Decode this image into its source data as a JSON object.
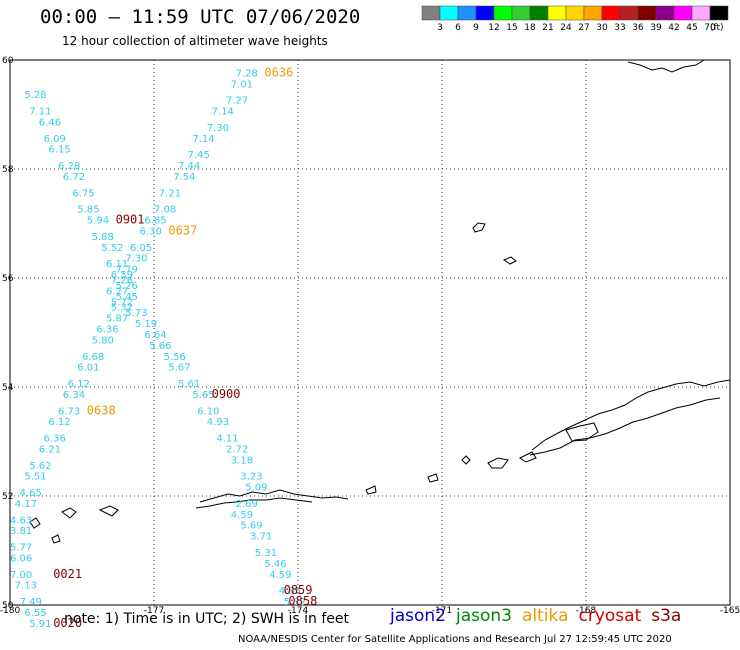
{
  "header": {
    "title": "00:00 – 11:59 UTC 07/06/2020",
    "subtitle": "12 hour collection of altimeter wave heights"
  },
  "legend": {
    "unit": "(ft)",
    "bins": [
      {
        "label": "3",
        "color": "#808080"
      },
      {
        "label": "6",
        "color": "#00ffff"
      },
      {
        "label": "9",
        "color": "#1e90ff"
      },
      {
        "label": "12",
        "color": "#0000ff"
      },
      {
        "label": "15",
        "color": "#00ff00"
      },
      {
        "label": "18",
        "color": "#32cd32"
      },
      {
        "label": "21",
        "color": "#008000"
      },
      {
        "label": "24",
        "color": "#ffff00"
      },
      {
        "label": "27",
        "color": "#ffd700"
      },
      {
        "label": "30",
        "color": "#ffa500"
      },
      {
        "label": "33",
        "color": "#ff0000"
      },
      {
        "label": "36",
        "color": "#b22222"
      },
      {
        "label": "39",
        "color": "#800000"
      },
      {
        "label": "42",
        "color": "#8b008b"
      },
      {
        "label": "45",
        "color": "#ff00ff"
      },
      {
        "label": "70",
        "color": "#ffaaff"
      },
      {
        "label": "",
        "color": "#000000"
      }
    ]
  },
  "axes": {
    "lat_labels": [
      "60",
      "58",
      "56",
      "54",
      "52",
      "50"
    ],
    "lon_labels": [
      "-180",
      "-177",
      "-174",
      "-171",
      "-168",
      "-165"
    ],
    "lat_range": [
      50,
      60
    ],
    "lon_range": [
      -180,
      -165
    ]
  },
  "colors": {
    "swh_text": "#33ccee",
    "time_altika": "#ee9900",
    "time_cryosat": "#880000",
    "coast": "#000000",
    "grid": "#000000"
  },
  "tracks": {
    "track_a": {
      "points": [
        {
          "lon": -175.3,
          "lat": 59.7,
          "v": "7.28"
        },
        {
          "lon": -175.4,
          "lat": 59.5,
          "v": "7.01"
        },
        {
          "lon": -175.5,
          "lat": 59.2,
          "v": "7.27"
        },
        {
          "lon": -175.8,
          "lat": 59.0,
          "v": "7.14"
        },
        {
          "lon": -175.9,
          "lat": 58.7,
          "v": "7.30"
        },
        {
          "lon": -176.2,
          "lat": 58.5,
          "v": "7.14"
        },
        {
          "lon": -176.3,
          "lat": 58.2,
          "v": "7.45"
        },
        {
          "lon": -176.5,
          "lat": 58.0,
          "v": "7.44"
        },
        {
          "lon": -176.6,
          "lat": 57.8,
          "v": "7.54"
        },
        {
          "lon": -176.9,
          "lat": 57.5,
          "v": "7.21"
        },
        {
          "lon": -177.0,
          "lat": 57.2,
          "v": "7.08"
        },
        {
          "lon": -177.2,
          "lat": 57.0,
          "v": "6.85"
        },
        {
          "lon": -177.3,
          "lat": 56.8,
          "v": "6.30"
        },
        {
          "lon": -177.5,
          "lat": 56.5,
          "v": "6.05"
        },
        {
          "lon": -177.6,
          "lat": 56.3,
          "v": "7.30"
        },
        {
          "lon": -177.8,
          "lat": 56.1,
          "v": "7.79"
        },
        {
          "lon": -177.9,
          "lat": 55.9,
          "v": "7.26"
        },
        {
          "lon": -178.0,
          "lat": 55.7,
          "v": "6.27"
        },
        {
          "lon": -177.9,
          "lat": 55.5,
          "v": "5.72"
        },
        {
          "lon": -177.6,
          "lat": 55.3,
          "v": "5.73"
        },
        {
          "lon": -177.4,
          "lat": 55.1,
          "v": "5.19"
        },
        {
          "lon": -177.2,
          "lat": 54.9,
          "v": "6.64"
        },
        {
          "lon": -177.1,
          "lat": 54.7,
          "v": "5.66"
        },
        {
          "lon": -176.8,
          "lat": 54.5,
          "v": "5.56"
        },
        {
          "lon": -176.7,
          "lat": 54.3,
          "v": "5.67"
        },
        {
          "lon": -176.5,
          "lat": 54.0,
          "v": "5.61"
        },
        {
          "lon": -176.2,
          "lat": 53.8,
          "v": "5.65"
        },
        {
          "lon": -176.1,
          "lat": 53.5,
          "v": "6.10"
        },
        {
          "lon": -175.9,
          "lat": 53.3,
          "v": "4.93"
        },
        {
          "lon": -175.7,
          "lat": 53.0,
          "v": "4.11"
        },
        {
          "lon": -175.5,
          "lat": 52.8,
          "v": "2.72"
        },
        {
          "lon": -175.4,
          "lat": 52.6,
          "v": "3.18"
        },
        {
          "lon": -175.2,
          "lat": 52.3,
          "v": "3.23"
        },
        {
          "lon": -175.1,
          "lat": 52.1,
          "v": "5.09"
        },
        {
          "lon": -175.3,
          "lat": 51.8,
          "v": "2.69"
        },
        {
          "lon": -175.4,
          "lat": 51.6,
          "v": "4.59"
        },
        {
          "lon": -175.2,
          "lat": 51.4,
          "v": "5.69"
        },
        {
          "lon": -175.0,
          "lat": 51.2,
          "v": "3.71"
        },
        {
          "lon": -174.9,
          "lat": 50.9,
          "v": "5.31"
        },
        {
          "lon": -174.7,
          "lat": 50.7,
          "v": "5.46"
        },
        {
          "lon": -174.6,
          "lat": 50.5,
          "v": "4.59"
        },
        {
          "lon": -174.4,
          "lat": 50.2,
          "v": "4.85"
        },
        {
          "lon": -174.3,
          "lat": 50.0,
          "v": "5.32"
        }
      ]
    },
    "track_b": {
      "points": [
        {
          "lon": -179.7,
          "lat": 59.3,
          "v": "5.28"
        },
        {
          "lon": -179.6,
          "lat": 59.0,
          "v": "7.11"
        },
        {
          "lon": -179.4,
          "lat": 58.8,
          "v": "6.46"
        },
        {
          "lon": -179.3,
          "lat": 58.5,
          "v": "6.09"
        },
        {
          "lon": -179.2,
          "lat": 58.3,
          "v": "6.15"
        },
        {
          "lon": -179.0,
          "lat": 58.0,
          "v": "6.28"
        },
        {
          "lon": -178.9,
          "lat": 57.8,
          "v": "6.72"
        },
        {
          "lon": -178.7,
          "lat": 57.5,
          "v": "6.75"
        },
        {
          "lon": -178.6,
          "lat": 57.2,
          "v": "5.85"
        },
        {
          "lon": -178.4,
          "lat": 57.0,
          "v": "5.94"
        },
        {
          "lon": -178.3,
          "lat": 56.7,
          "v": "5.88"
        },
        {
          "lon": -178.1,
          "lat": 56.5,
          "v": "5.52"
        },
        {
          "lon": -178.0,
          "lat": 56.2,
          "v": "6.11"
        },
        {
          "lon": -177.9,
          "lat": 56.0,
          "v": "6.59"
        },
        {
          "lon": -177.8,
          "lat": 55.8,
          "v": "5.26"
        },
        {
          "lon": -177.8,
          "lat": 55.6,
          "v": "5.45"
        },
        {
          "lon": -177.9,
          "lat": 55.4,
          "v": "5.32"
        },
        {
          "lon": -178.0,
          "lat": 55.2,
          "v": "5.87"
        },
        {
          "lon": -178.2,
          "lat": 55.0,
          "v": "6.36"
        },
        {
          "lon": -178.3,
          "lat": 54.8,
          "v": "5.80"
        },
        {
          "lon": -178.5,
          "lat": 54.5,
          "v": "6.68"
        },
        {
          "lon": -178.6,
          "lat": 54.3,
          "v": "6.01"
        },
        {
          "lon": -178.8,
          "lat": 54.0,
          "v": "6.12"
        },
        {
          "lon": -178.9,
          "lat": 53.8,
          "v": "6.34"
        },
        {
          "lon": -179.0,
          "lat": 53.5,
          "v": "6.73"
        },
        {
          "lon": -179.2,
          "lat": 53.3,
          "v": "6.12"
        },
        {
          "lon": -179.3,
          "lat": 53.0,
          "v": "6.36"
        },
        {
          "lon": -179.4,
          "lat": 52.8,
          "v": "6.21"
        },
        {
          "lon": -179.6,
          "lat": 52.5,
          "v": "5.62"
        },
        {
          "lon": -179.7,
          "lat": 52.3,
          "v": "5.51"
        },
        {
          "lon": -179.8,
          "lat": 52.0,
          "v": "4.65"
        },
        {
          "lon": -179.9,
          "lat": 51.8,
          "v": "4.17"
        },
        {
          "lon": -180.0,
          "lat": 51.5,
          "v": "4.63"
        },
        {
          "lon": -180.0,
          "lat": 51.3,
          "v": "3.81"
        },
        {
          "lon": -180.0,
          "lat": 51.0,
          "v": "5.77"
        },
        {
          "lon": -180.0,
          "lat": 50.8,
          "v": "6.06"
        },
        {
          "lon": -180.0,
          "lat": 50.5,
          "v": "7.00"
        },
        {
          "lon": -179.9,
          "lat": 50.3,
          "v": "7.13"
        },
        {
          "lon": -179.8,
          "lat": 50.0,
          "v": "7.49"
        },
        {
          "lon": -179.7,
          "lat": 49.8,
          "v": "6.55"
        },
        {
          "lon": -179.6,
          "lat": 49.6,
          "v": "5.91"
        }
      ]
    },
    "time_labels": [
      {
        "lon": -174.7,
        "lat": 59.7,
        "text": "0636",
        "sat": "altika"
      },
      {
        "lon": -176.7,
        "lat": 56.8,
        "text": "0637",
        "sat": "altika"
      },
      {
        "lon": -178.4,
        "lat": 53.5,
        "text": "0638",
        "sat": "altika"
      },
      {
        "lon": -177.8,
        "lat": 57.0,
        "text": "0901",
        "sat": "cryosat"
      },
      {
        "lon": -175.8,
        "lat": 53.8,
        "text": "0900",
        "sat": "cryosat"
      },
      {
        "lon": -179.1,
        "lat": 50.5,
        "text": "0021",
        "sat": "cryosat"
      },
      {
        "lon": -179.1,
        "lat": 49.6,
        "text": "0020",
        "sat": "cryosat"
      },
      {
        "lon": -174.3,
        "lat": 50.2,
        "text": "0859",
        "sat": "cryosat"
      },
      {
        "lon": -174.2,
        "lat": 50.0,
        "text": "0858",
        "sat": "cryosat"
      }
    ]
  },
  "footer": {
    "note": "note: 1) Time is in UTC; 2) SWH is in feet",
    "credit": "NOAA/NESDIS Center for Satellite Applications and Research   Jul 27 12:59:45 UTC 2020",
    "satellites": [
      {
        "name": "jason2",
        "color": "#0000cc"
      },
      {
        "name": "jason3",
        "color": "#008800"
      },
      {
        "name": "altika",
        "color": "#ee9900"
      },
      {
        "name": "cryosat",
        "color": "#cc0000"
      },
      {
        "name": "s3a",
        "color": "#880000"
      }
    ]
  }
}
